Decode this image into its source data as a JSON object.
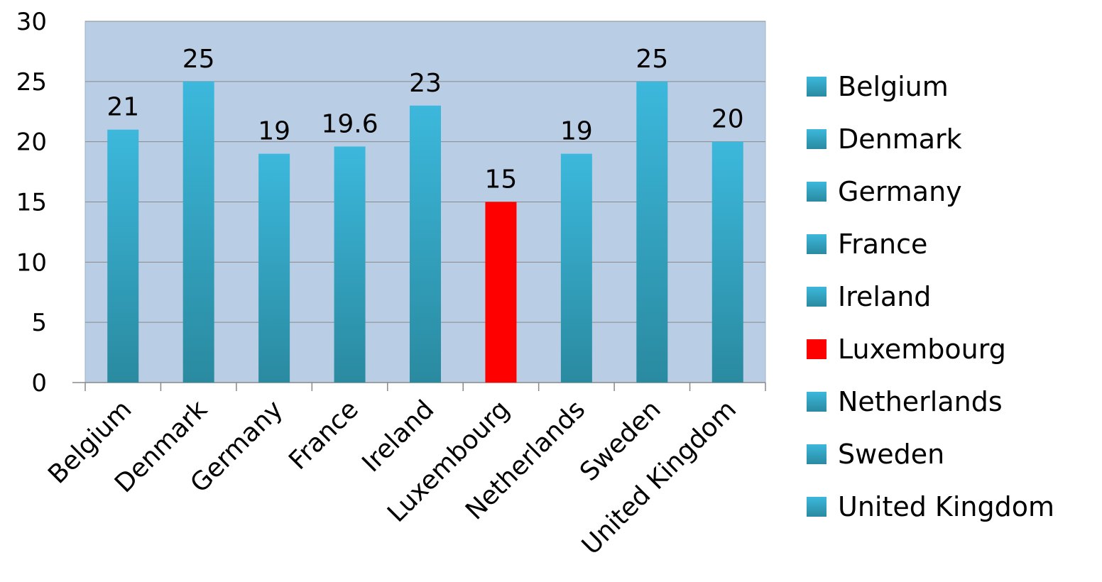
{
  "chart_data": {
    "type": "bar",
    "title": "",
    "xlabel": "",
    "ylabel": "",
    "categories": [
      "Belgium",
      "Denmark",
      "Germany",
      "France",
      "Ireland",
      "Luxembourg",
      "Netherlands",
      "Sweden",
      "United Kingdom"
    ],
    "values": [
      21,
      25,
      19,
      19.6,
      23,
      15,
      19,
      25,
      20
    ],
    "data_labels": [
      "21",
      "25",
      "19",
      "19.6",
      "23",
      "15",
      "19",
      "25",
      "20"
    ],
    "ylim": [
      0,
      30
    ],
    "yticks": [
      0,
      5,
      10,
      15,
      20,
      25,
      30
    ],
    "ytick_labels": [
      "0",
      "5",
      "10",
      "15",
      "20",
      "25",
      "30"
    ],
    "grid": true,
    "legend_position": "right",
    "legend": [
      "Belgium",
      "Denmark",
      "Germany",
      "France",
      "Ireland",
      "Luxembourg",
      "Netherlands",
      "Sweden",
      "United Kingdom"
    ],
    "colors": {
      "plot_background": "#b9cde5",
      "gridline": "#8a8a8a",
      "bar_top": "#3cb8dc",
      "bar_bottom": "#2a8aa0",
      "highlight": "#ff0000",
      "axis": "#888888"
    },
    "highlight_category": "Luxembourg"
  }
}
